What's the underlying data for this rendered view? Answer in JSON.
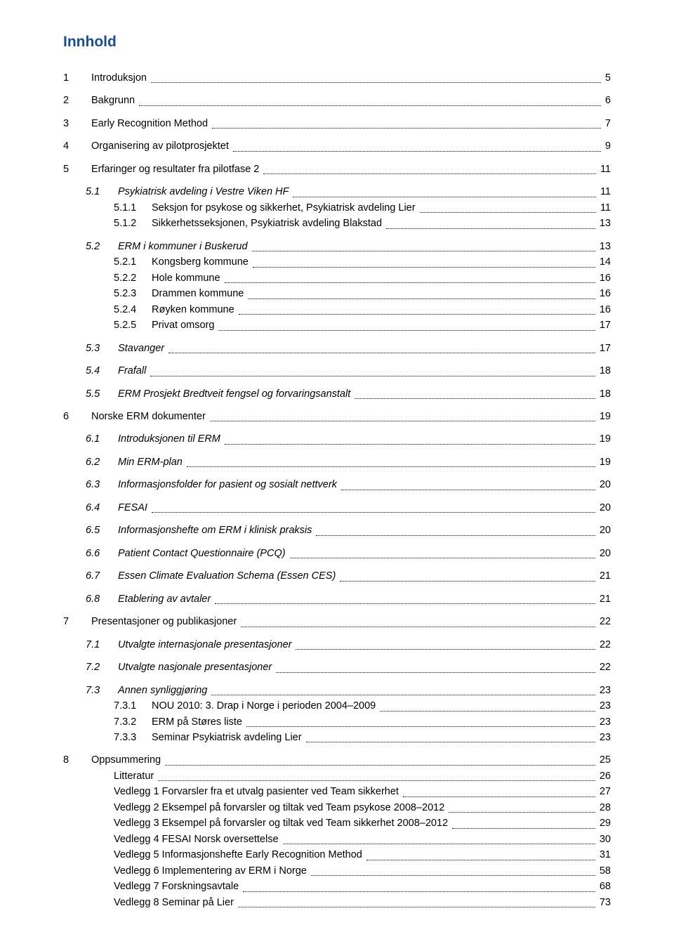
{
  "title": "Innhold",
  "colors": {
    "title": "#1a4d8f",
    "text": "#000000",
    "background": "#ffffff"
  },
  "entries": [
    {
      "num": "1",
      "label": "Introduksjon",
      "page": "5",
      "level": 0,
      "gap": true
    },
    {
      "num": "2",
      "label": "Bakgrunn",
      "page": "6",
      "level": 0,
      "gap": true
    },
    {
      "num": "3",
      "label": "Early Recognition Method",
      "page": "7",
      "level": 0,
      "gap": true
    },
    {
      "num": "4",
      "label": "Organisering av pilotprosjektet",
      "page": "9",
      "level": 0,
      "gap": true
    },
    {
      "num": "5",
      "label": "Erfaringer og resultater fra pilotfase 2",
      "page": "11",
      "level": 0,
      "gap": true
    },
    {
      "num": "5.1",
      "label": "Psykiatrisk avdeling i Vestre Viken HF",
      "page": "11",
      "level": 1,
      "italic": true,
      "gap": true
    },
    {
      "num": "5.1.1",
      "label": "Seksjon for psykose og sikkerhet, Psykiatrisk avdeling Lier",
      "page": "11",
      "level": 2
    },
    {
      "num": "5.1.2",
      "label": "Sikkerhetsseksjonen, Psykiatrisk avdeling Blakstad",
      "page": "13",
      "level": 2
    },
    {
      "num": "5.2",
      "label": "ERM i kommuner i Buskerud",
      "page": "13",
      "level": 1,
      "italic": true,
      "gap": true
    },
    {
      "num": "5.2.1",
      "label": "Kongsberg kommune",
      "page": "14",
      "level": 2
    },
    {
      "num": "5.2.2",
      "label": "Hole kommune",
      "page": "16",
      "level": 2
    },
    {
      "num": "5.2.3",
      "label": "Drammen kommune",
      "page": "16",
      "level": 2
    },
    {
      "num": "5.2.4",
      "label": "Røyken kommune",
      "page": "16",
      "level": 2
    },
    {
      "num": "5.2.5",
      "label": "Privat omsorg",
      "page": "17",
      "level": 2
    },
    {
      "num": "5.3",
      "label": "Stavanger",
      "page": "17",
      "level": 1,
      "italic": true,
      "gap": true
    },
    {
      "num": "5.4",
      "label": "Frafall",
      "page": "18",
      "level": 1,
      "italic": true,
      "gap": true
    },
    {
      "num": "5.5",
      "label": "ERM Prosjekt Bredtveit fengsel og forvaringsanstalt",
      "page": "18",
      "level": 1,
      "italic": true,
      "gap": true
    },
    {
      "num": "6",
      "label": "Norske ERM dokumenter",
      "page": "19",
      "level": 0,
      "gap": true
    },
    {
      "num": "6.1",
      "label": "Introduksjonen til ERM",
      "page": "19",
      "level": 1,
      "italic": true,
      "gap": true
    },
    {
      "num": "6.2",
      "label": "Min ERM-plan",
      "page": "19",
      "level": 1,
      "italic": true,
      "gap": true
    },
    {
      "num": "6.3",
      "label": "Informasjonsfolder for pasient og sosialt nettverk",
      "page": "20",
      "level": 1,
      "italic": true,
      "gap": true
    },
    {
      "num": "6.4",
      "label": "FESAI",
      "page": "20",
      "level": 1,
      "italic": true,
      "gap": true
    },
    {
      "num": "6.5",
      "label": "Informasjonshefte om ERM i klinisk praksis",
      "page": "20",
      "level": 1,
      "italic": true,
      "gap": true
    },
    {
      "num": "6.6",
      "label": "Patient Contact Questionnaire (PCQ)",
      "page": "20",
      "level": 1,
      "italic": true,
      "gap": true
    },
    {
      "num": "6.7",
      "label": "Essen Climate Evaluation Schema (Essen CES)",
      "page": "21",
      "level": 1,
      "italic": true,
      "gap": true
    },
    {
      "num": "6.8",
      "label": "Etablering av avtaler",
      "page": "21",
      "level": 1,
      "italic": true,
      "gap": true
    },
    {
      "num": "7",
      "label": "Presentasjoner og publikasjoner",
      "page": "22",
      "level": 0,
      "gap": true
    },
    {
      "num": "7.1",
      "label": "Utvalgte internasjonale presentasjoner",
      "page": "22",
      "level": 1,
      "italic": true,
      "gap": true
    },
    {
      "num": "7.2",
      "label": "Utvalgte nasjonale presentasjoner",
      "page": "22",
      "level": 1,
      "italic": true,
      "gap": true
    },
    {
      "num": "7.3",
      "label": "Annen synliggjøring",
      "page": "23",
      "level": 1,
      "italic": true,
      "gap": true
    },
    {
      "num": "7.3.1",
      "label": "NOU 2010: 3. Drap i Norge i perioden 2004–2009",
      "page": "23",
      "level": 2
    },
    {
      "num": "7.3.2",
      "label": "ERM på Støres liste",
      "page": "23",
      "level": 2
    },
    {
      "num": "7.3.3",
      "label": "Seminar Psykiatrisk avdeling Lier",
      "page": "23",
      "level": 2
    },
    {
      "num": "8",
      "label": "Oppsummering",
      "page": "25",
      "level": 0,
      "gap": true
    },
    {
      "num": "",
      "label": "Litteratur",
      "page": "26",
      "level": 2
    },
    {
      "num": "",
      "label": "Vedlegg 1 Forvarsler fra et utvalg pasienter ved Team sikkerhet",
      "page": "27",
      "level": 2
    },
    {
      "num": "",
      "label": "Vedlegg 2 Eksempel på forvarsler og tiltak ved Team psykose 2008–2012",
      "page": "28",
      "level": 2
    },
    {
      "num": "",
      "label": "Vedlegg 3 Eksempel på forvarsler og tiltak ved Team sikkerhet 2008–2012",
      "page": "29",
      "level": 2
    },
    {
      "num": "",
      "label": "Vedlegg 4 FESAI Norsk oversettelse",
      "page": "30",
      "level": 2
    },
    {
      "num": "",
      "label": "Vedlegg 5 Informasjonshefte Early Recognition Method",
      "page": "31",
      "level": 2
    },
    {
      "num": "",
      "label": "Vedlegg 6 Implementering av ERM i Norge",
      "page": "58",
      "level": 2
    },
    {
      "num": "",
      "label": "Vedlegg 7 Forskningsavtale",
      "page": "68",
      "level": 2
    },
    {
      "num": "",
      "label": "Vedlegg 8 Seminar på Lier",
      "page": "73",
      "level": 2
    }
  ]
}
